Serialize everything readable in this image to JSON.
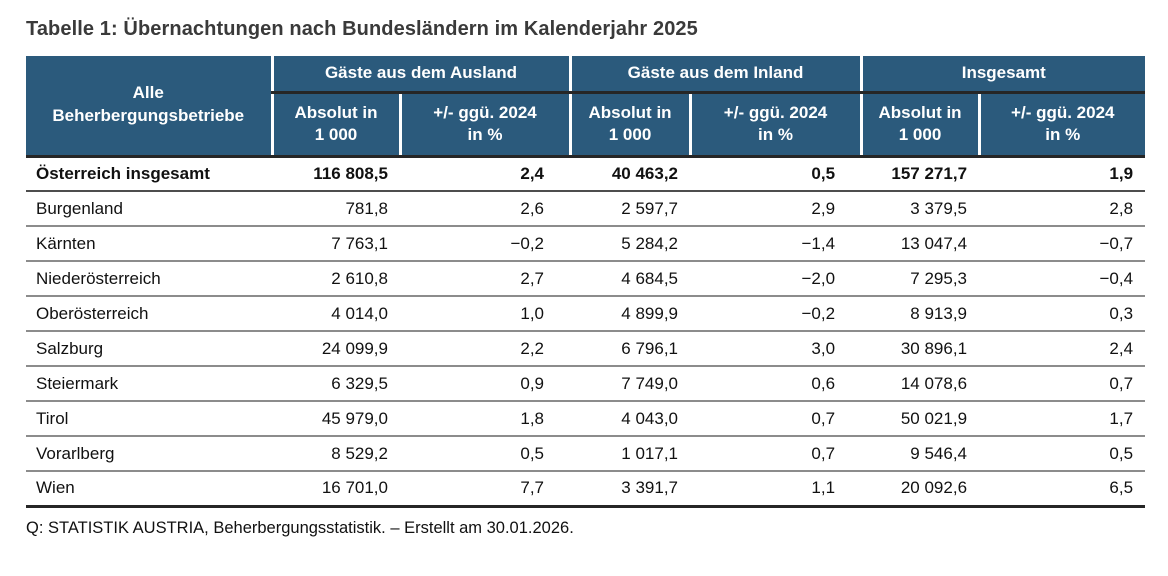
{
  "page": {
    "title": "Tabelle 1: Übernachtungen nach Bundesländern im Kalenderjahr 2025",
    "source_note": "Q: STATISTIK AUSTRIA, Beherbergungsstatistik. – Erstellt am 30.01.2026."
  },
  "colors": {
    "header_bg": "#2b5a7c",
    "header_text": "#ffffff",
    "title_text": "#3a3a3a",
    "row_divider": "#8c8c8c",
    "strong_divider": "#262626"
  },
  "table": {
    "stub_header": "Alle\nBeherbergungsbetriebe",
    "column_groups": [
      {
        "label": "Gäste aus dem Ausland"
      },
      {
        "label": "Gäste aus dem Inland"
      },
      {
        "label": "Insgesamt"
      }
    ],
    "sub_headers": {
      "absolute": "Absolut in\n1 000",
      "change": "+/- ggü. 2024\nin %"
    },
    "rows": [
      {
        "label": "Österreich insgesamt",
        "bold": true,
        "values": [
          "116 808,5",
          "2,4",
          "40 463,2",
          "0,5",
          "157 271,7",
          "1,9"
        ]
      },
      {
        "label": "Burgenland",
        "bold": false,
        "values": [
          "781,8",
          "2,6",
          "2 597,7",
          "2,9",
          "3 379,5",
          "2,8"
        ]
      },
      {
        "label": "Kärnten",
        "bold": false,
        "values": [
          "7 763,1",
          "−0,2",
          "5 284,2",
          "−1,4",
          "13 047,4",
          "−0,7"
        ]
      },
      {
        "label": "Niederösterreich",
        "bold": false,
        "values": [
          "2 610,8",
          "2,7",
          "4 684,5",
          "−2,0",
          "7 295,3",
          "−0,4"
        ]
      },
      {
        "label": "Oberösterreich",
        "bold": false,
        "values": [
          "4 014,0",
          "1,0",
          "4 899,9",
          "−0,2",
          "8 913,9",
          "0,3"
        ]
      },
      {
        "label": "Salzburg",
        "bold": false,
        "values": [
          "24 099,9",
          "2,2",
          "6 796,1",
          "3,0",
          "30 896,1",
          "2,4"
        ]
      },
      {
        "label": "Steiermark",
        "bold": false,
        "values": [
          "6 329,5",
          "0,9",
          "7 749,0",
          "0,6",
          "14 078,6",
          "0,7"
        ]
      },
      {
        "label": "Tirol",
        "bold": false,
        "values": [
          "45 979,0",
          "1,8",
          "4 043,0",
          "0,7",
          "50 021,9",
          "1,7"
        ]
      },
      {
        "label": "Vorarlberg",
        "bold": false,
        "values": [
          "8 529,2",
          "0,5",
          "1 017,1",
          "0,7",
          "9 546,4",
          "0,5"
        ]
      },
      {
        "label": "Wien",
        "bold": false,
        "values": [
          "16 701,0",
          "7,7",
          "3 391,7",
          "1,1",
          "20 092,6",
          "6,5"
        ]
      }
    ]
  }
}
